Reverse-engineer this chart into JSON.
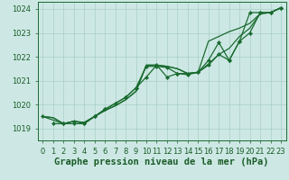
{
  "title": "Graphe pression niveau de la mer (hPa)",
  "ylim": [
    1018.5,
    1024.3
  ],
  "xlim": [
    -0.5,
    23.5
  ],
  "yticks": [
    1019,
    1020,
    1021,
    1022,
    1023,
    1024
  ],
  "xticks": [
    0,
    1,
    2,
    3,
    4,
    5,
    6,
    7,
    8,
    9,
    10,
    11,
    12,
    13,
    14,
    15,
    16,
    17,
    18,
    19,
    20,
    21,
    22,
    23
  ],
  "background_color": "#cde8e4",
  "grid_color": "#a8cdc8",
  "line_color": "#1a6b30",
  "series1_x": [
    0,
    1,
    2,
    3,
    4,
    5,
    6,
    7,
    8,
    9,
    10,
    11,
    12,
    13,
    14,
    15,
    16,
    17,
    18,
    19,
    20,
    21,
    22,
    23
  ],
  "series1_y": [
    1019.5,
    1019.45,
    1019.2,
    1019.3,
    1019.25,
    1019.5,
    1019.75,
    1019.95,
    1020.2,
    1020.55,
    1021.65,
    1021.65,
    1021.6,
    1021.5,
    1021.3,
    1021.35,
    1021.7,
    1022.1,
    1022.35,
    1022.85,
    1023.2,
    1023.8,
    1023.85,
    1024.05
  ],
  "series2_x": [
    0,
    1,
    2,
    3,
    4,
    5,
    6,
    7,
    8,
    9,
    10,
    11,
    12,
    13,
    14,
    15,
    16,
    17,
    18,
    19,
    20,
    21,
    22,
    23
  ],
  "series2_y": [
    1019.5,
    1019.45,
    1019.2,
    1019.3,
    1019.25,
    1019.5,
    1019.75,
    1019.95,
    1020.2,
    1020.55,
    1021.65,
    1021.65,
    1021.6,
    1021.5,
    1021.3,
    1021.35,
    1022.65,
    1022.85,
    1023.05,
    1023.2,
    1023.4,
    1023.8,
    1023.85,
    1024.05
  ],
  "series3_x": [
    0,
    2,
    3,
    4,
    5,
    6,
    7,
    8,
    9,
    10,
    11,
    12,
    13,
    14,
    15,
    16,
    17,
    18,
    19,
    20,
    21,
    22,
    23
  ],
  "series3_y": [
    1019.5,
    1019.2,
    1019.3,
    1019.2,
    1019.5,
    1019.8,
    1020.05,
    1020.3,
    1020.7,
    1021.15,
    1021.65,
    1021.15,
    1021.3,
    1021.25,
    1021.35,
    1021.85,
    1022.6,
    1021.85,
    1022.65,
    1023.0,
    1023.85,
    1023.85,
    1024.05
  ],
  "series4_x": [
    1,
    2,
    3,
    4,
    5,
    6,
    7,
    8,
    9,
    10,
    11,
    12,
    13,
    14,
    15,
    16,
    17,
    18,
    19,
    20,
    21,
    22,
    23
  ],
  "series4_y": [
    1019.2,
    1019.2,
    1019.2,
    1019.2,
    1019.5,
    1019.8,
    1020.05,
    1020.3,
    1020.7,
    1021.6,
    1021.6,
    1021.55,
    1021.3,
    1021.3,
    1021.35,
    1021.65,
    1022.1,
    1021.85,
    1022.65,
    1023.85,
    1023.85,
    1023.85,
    1024.05
  ],
  "title_color": "#1a5c28",
  "title_fontsize": 7.5,
  "tick_fontsize": 6.0
}
